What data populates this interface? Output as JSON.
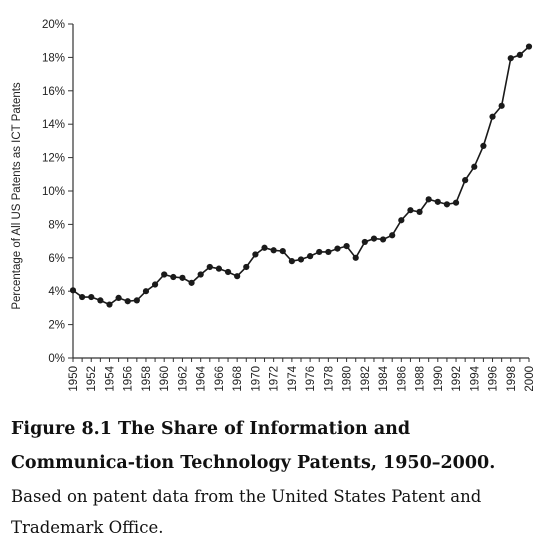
{
  "figure": {
    "title": "Figure 8.1 The Share of Information and Communica-tion Technology Patents, 1950–2000.",
    "note": "Based on patent data from the United States Patent and Trademark Office."
  },
  "chart_data": {
    "type": "line",
    "title": "",
    "xlabel": "",
    "ylabel": "Percentage of All US Patents as ICT Patents",
    "xlim": [
      1950,
      2000
    ],
    "ylim": [
      0,
      20
    ],
    "x_ticks": [
      "1950",
      "1952",
      "1954",
      "1956",
      "1958",
      "1960",
      "1962",
      "1964",
      "1966",
      "1968",
      "1970",
      "1972",
      "1974",
      "1976",
      "1978",
      "1980",
      "1982",
      "1984",
      "1986",
      "1988",
      "1990",
      "1992",
      "1994",
      "1996",
      "1998",
      "2000"
    ],
    "y_ticks": [
      "0%",
      "2%",
      "4%",
      "6%",
      "8%",
      "10%",
      "12%",
      "14%",
      "16%",
      "18%",
      "20%"
    ],
    "grid": false,
    "color": "#1a1a1a",
    "x": [
      1950,
      1951,
      1952,
      1953,
      1954,
      1955,
      1956,
      1957,
      1958,
      1959,
      1960,
      1961,
      1962,
      1963,
      1964,
      1965,
      1966,
      1967,
      1968,
      1969,
      1970,
      1971,
      1972,
      1973,
      1974,
      1975,
      1976,
      1977,
      1978,
      1979,
      1980,
      1981,
      1982,
      1983,
      1984,
      1985,
      1986,
      1987,
      1988,
      1989,
      1990,
      1991,
      1992,
      1993,
      1994,
      1995,
      1996,
      1997,
      1998,
      1999,
      2000
    ],
    "values": [
      4.05,
      3.65,
      3.65,
      3.45,
      3.2,
      3.6,
      3.4,
      3.45,
      4.0,
      4.4,
      5.0,
      4.85,
      4.8,
      4.5,
      5.0,
      5.45,
      5.35,
      5.15,
      4.9,
      5.45,
      6.2,
      6.6,
      6.45,
      6.4,
      5.8,
      5.9,
      6.1,
      6.35,
      6.35,
      6.55,
      6.7,
      6.0,
      6.95,
      7.15,
      7.1,
      7.35,
      8.25,
      8.85,
      8.75,
      9.5,
      9.35,
      9.2,
      9.3,
      10.65,
      11.45,
      12.7,
      14.45,
      15.1,
      17.95,
      18.15,
      18.65
    ]
  }
}
